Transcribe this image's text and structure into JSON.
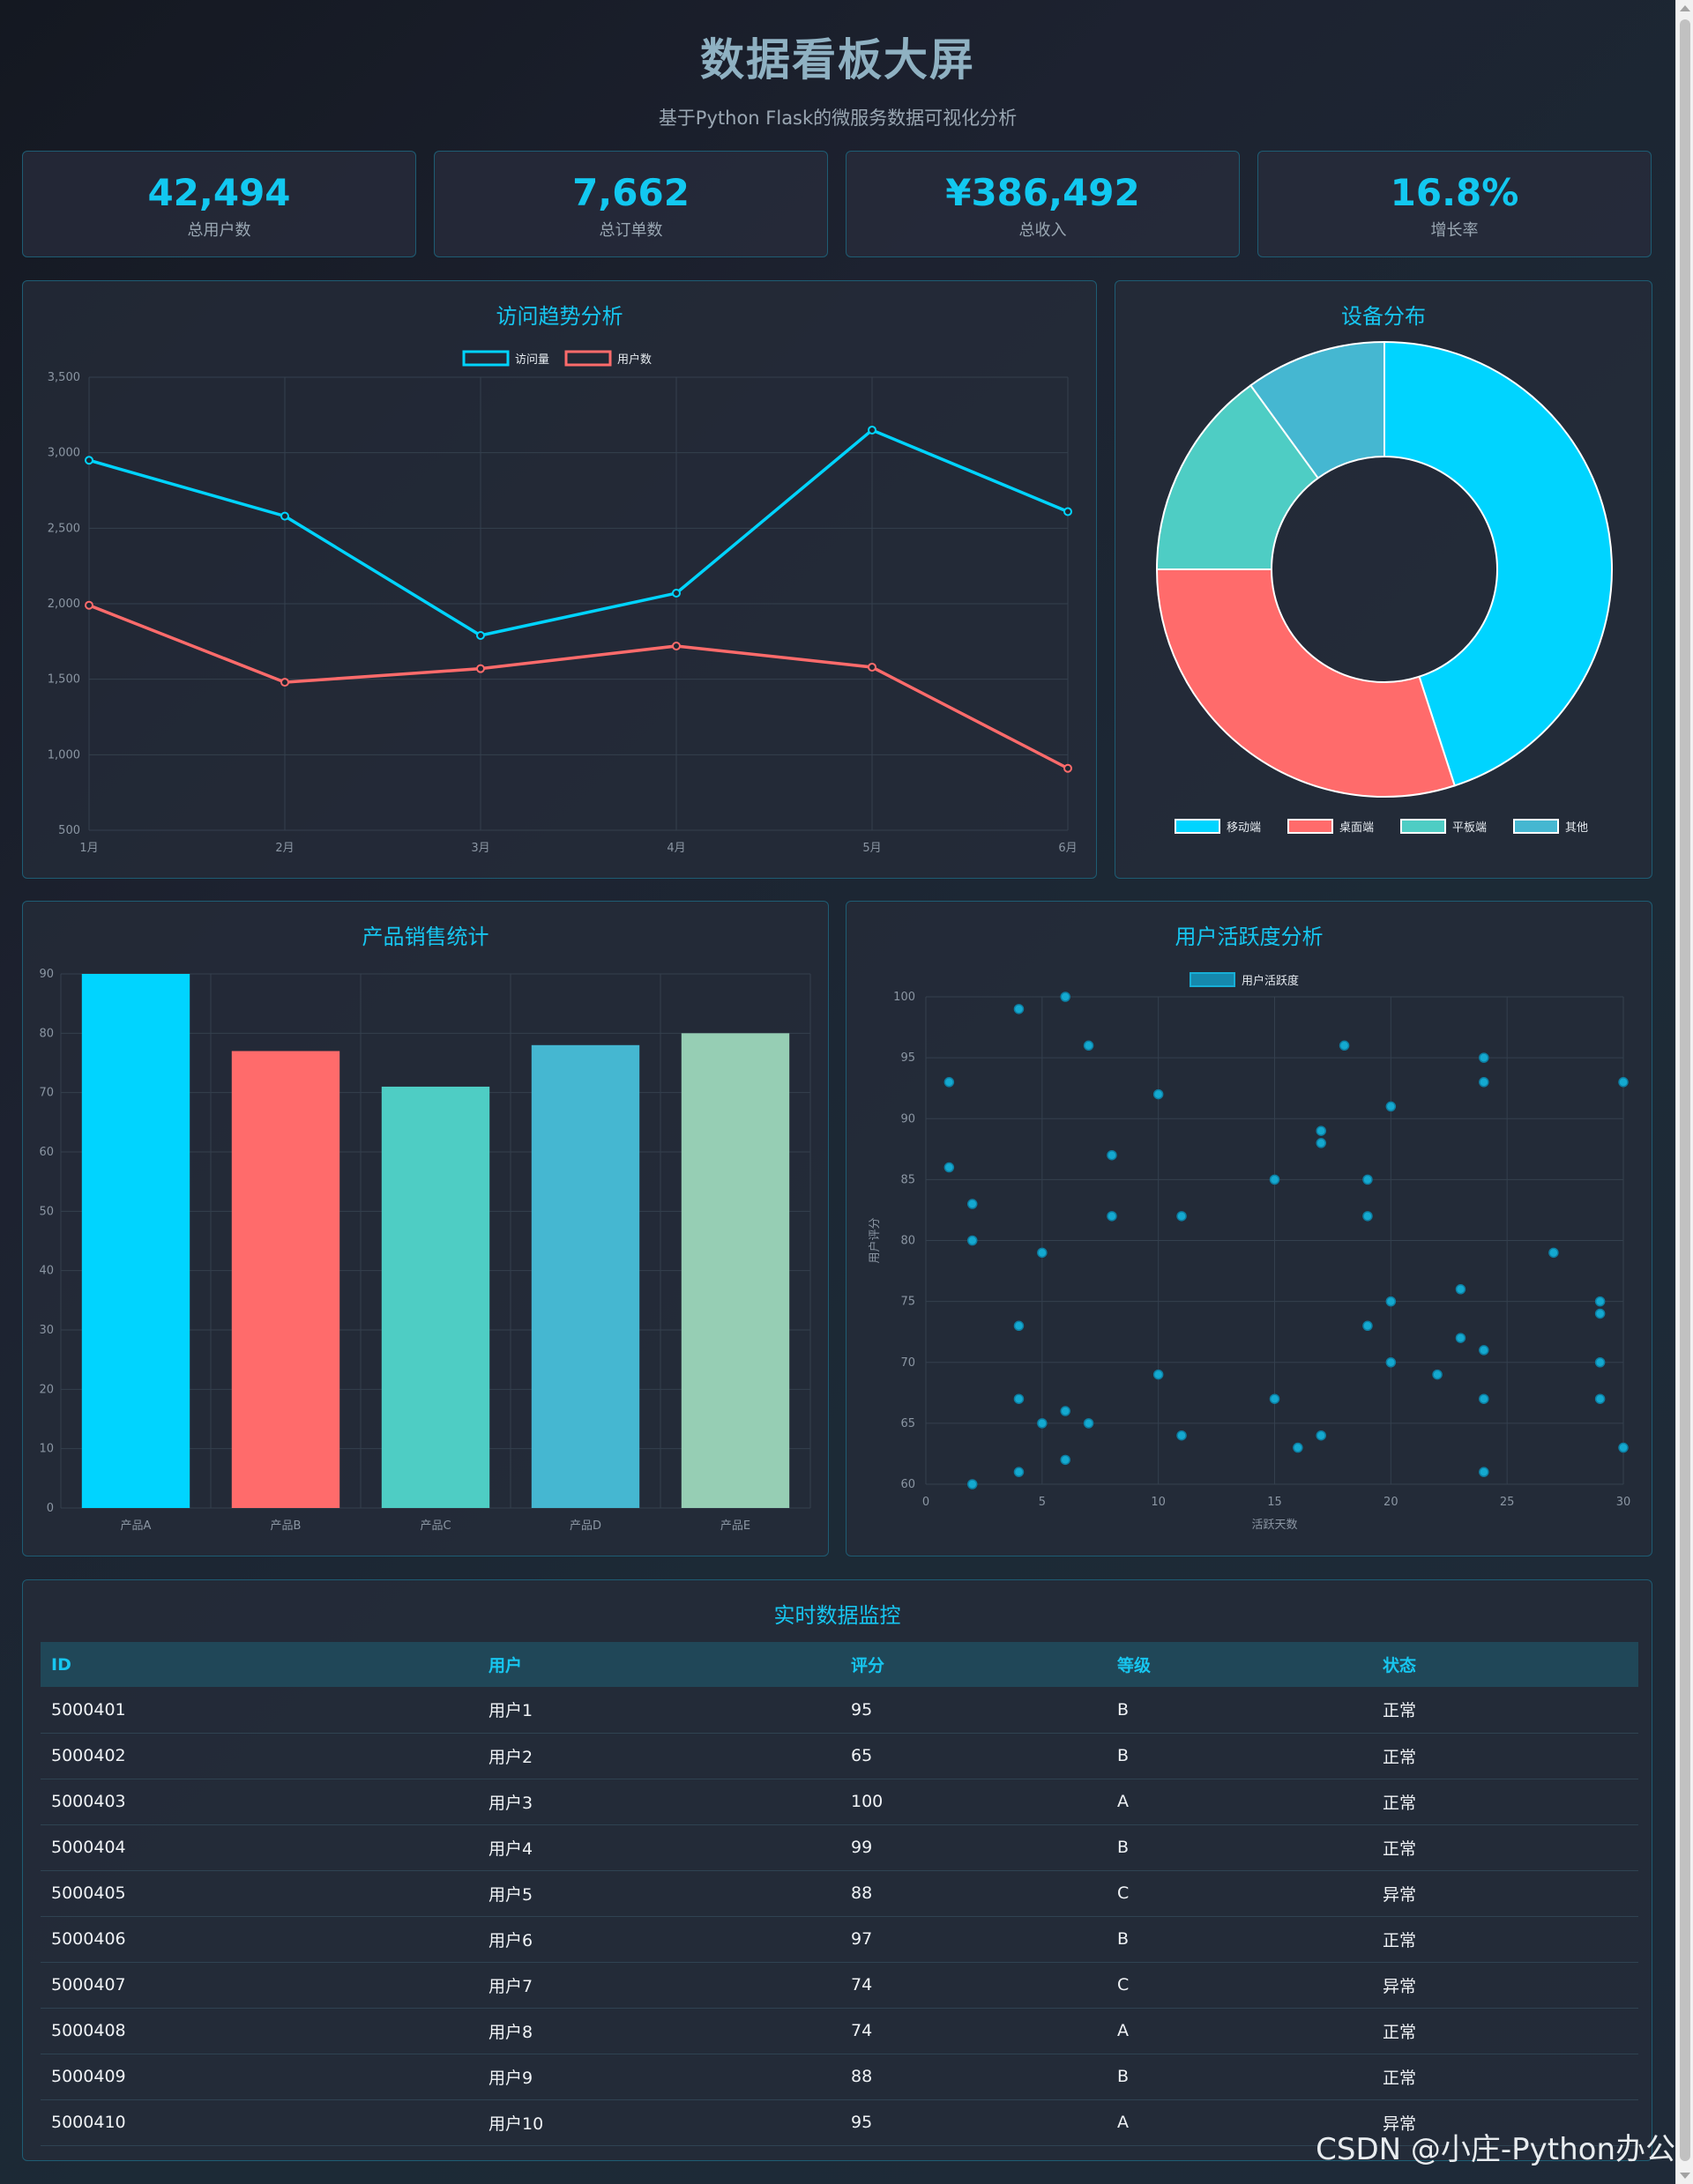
{
  "header": {
    "title": "数据看板大屏",
    "subtitle": "基于Python Flask的微服务数据可视化分析"
  },
  "stats": [
    {
      "value": "42,494",
      "label": "总用户数"
    },
    {
      "value": "7,662",
      "label": "总订单数"
    },
    {
      "value": "¥386,492",
      "label": "总收入"
    },
    {
      "value": "16.8%",
      "label": "增长率"
    }
  ],
  "colors": {
    "accent": "#17c6f0",
    "cyan": "#00d4ff",
    "red": "#ff6b6b",
    "teal": "#4ecdc4",
    "blue": "#45b7d1",
    "green": "#96ceb4",
    "ok": "#46c8b4",
    "bad": "#e2575b"
  },
  "chart_data": [
    {
      "type": "line",
      "title": "访问趋势分析",
      "categories": [
        "1月",
        "2月",
        "3月",
        "4月",
        "5月",
        "6月"
      ],
      "series": [
        {
          "name": "访问量",
          "values": [
            2950,
            2580,
            1790,
            2070,
            3150,
            2610
          ],
          "color": "#00d4ff"
        },
        {
          "name": "用户数",
          "values": [
            1990,
            1480,
            1570,
            1720,
            1580,
            910
          ],
          "color": "#ff6b6b"
        }
      ],
      "ylim": [
        500,
        3500
      ],
      "yticks": [
        "500",
        "1,000",
        "1,500",
        "2,000",
        "2,500",
        "3,000",
        "3,500"
      ],
      "grid": true,
      "legend": "top-center"
    },
    {
      "type": "pie",
      "subtype": "doughnut",
      "title": "设备分布",
      "labels": [
        "移动端",
        "桌面端",
        "平板端",
        "其他"
      ],
      "values": [
        45,
        30,
        15,
        10
      ],
      "colors": [
        "#00d4ff",
        "#ff6b6b",
        "#4ecdc4",
        "#45b7d1"
      ],
      "legend": "bottom"
    },
    {
      "type": "bar",
      "title": "产品销售统计",
      "categories": [
        "产品A",
        "产品B",
        "产品C",
        "产品D",
        "产品E"
      ],
      "values": [
        90,
        77,
        71,
        78,
        80
      ],
      "colors": [
        "#00d4ff",
        "#ff6b6b",
        "#4ecdc4",
        "#45b7d1",
        "#96ceb4"
      ],
      "ylim": [
        0,
        90
      ],
      "yticks": [
        "0",
        "10",
        "20",
        "30",
        "40",
        "50",
        "60",
        "70",
        "80",
        "90"
      ],
      "grid": true
    },
    {
      "type": "scatter",
      "title": "用户活跃度分析",
      "series": [
        {
          "name": "用户活跃度",
          "color": "#17aed6",
          "points": [
            [
              1,
              93
            ],
            [
              1,
              86
            ],
            [
              2,
              83
            ],
            [
              2,
              80
            ],
            [
              2,
              60
            ],
            [
              4,
              99
            ],
            [
              4,
              73
            ],
            [
              4,
              67
            ],
            [
              4,
              61
            ],
            [
              5,
              79
            ],
            [
              5,
              65
            ],
            [
              6,
              100
            ],
            [
              6,
              66
            ],
            [
              6,
              62
            ],
            [
              7,
              96
            ],
            [
              7,
              65
            ],
            [
              8,
              87
            ],
            [
              8,
              82
            ],
            [
              10,
              92
            ],
            [
              10,
              69
            ],
            [
              11,
              82
            ],
            [
              11,
              64
            ],
            [
              15,
              85
            ],
            [
              15,
              67
            ],
            [
              16,
              63
            ],
            [
              17,
              89
            ],
            [
              17,
              88
            ],
            [
              17,
              64
            ],
            [
              18,
              96
            ],
            [
              19,
              85
            ],
            [
              19,
              82
            ],
            [
              19,
              73
            ],
            [
              20,
              91
            ],
            [
              20,
              75
            ],
            [
              20,
              70
            ],
            [
              22,
              69
            ],
            [
              23,
              76
            ],
            [
              23,
              72
            ],
            [
              24,
              95
            ],
            [
              24,
              93
            ],
            [
              24,
              71
            ],
            [
              24,
              67
            ],
            [
              24,
              61
            ],
            [
              27,
              79
            ],
            [
              29,
              75
            ],
            [
              29,
              74
            ],
            [
              29,
              70
            ],
            [
              29,
              67
            ],
            [
              30,
              93
            ],
            [
              30,
              63
            ]
          ]
        }
      ],
      "xlabel": "活跃天数",
      "ylabel": "用户评分",
      "xlim": [
        0,
        30
      ],
      "ylim": [
        60,
        100
      ],
      "xticks": [
        "0",
        "5",
        "10",
        "15",
        "20",
        "25",
        "30"
      ],
      "yticks": [
        "60",
        "65",
        "70",
        "75",
        "80",
        "85",
        "90",
        "95",
        "100"
      ],
      "grid": true,
      "legend": "top-center"
    }
  ],
  "monitor": {
    "title": "实时数据监控",
    "columns": [
      "ID",
      "用户",
      "评分",
      "等级",
      "状态"
    ],
    "rows": [
      {
        "id": "5000401",
        "user": "用户1",
        "score": "95",
        "level": "B",
        "status": "正常",
        "ok": true
      },
      {
        "id": "5000402",
        "user": "用户2",
        "score": "65",
        "level": "B",
        "status": "正常",
        "ok": true
      },
      {
        "id": "5000403",
        "user": "用户3",
        "score": "100",
        "level": "A",
        "status": "正常",
        "ok": true
      },
      {
        "id": "5000404",
        "user": "用户4",
        "score": "99",
        "level": "B",
        "status": "正常",
        "ok": true
      },
      {
        "id": "5000405",
        "user": "用户5",
        "score": "88",
        "level": "C",
        "status": "异常",
        "ok": false
      },
      {
        "id": "5000406",
        "user": "用户6",
        "score": "97",
        "level": "B",
        "status": "正常",
        "ok": true
      },
      {
        "id": "5000407",
        "user": "用户7",
        "score": "74",
        "level": "C",
        "status": "异常",
        "ok": false
      },
      {
        "id": "5000408",
        "user": "用户8",
        "score": "74",
        "level": "A",
        "status": "正常",
        "ok": true
      },
      {
        "id": "5000409",
        "user": "用户9",
        "score": "88",
        "level": "B",
        "status": "正常",
        "ok": true
      },
      {
        "id": "5000410",
        "user": "用户10",
        "score": "95",
        "level": "A",
        "status": "异常",
        "ok": false
      }
    ]
  },
  "watermark": "CSDN @小庄-Python办公"
}
